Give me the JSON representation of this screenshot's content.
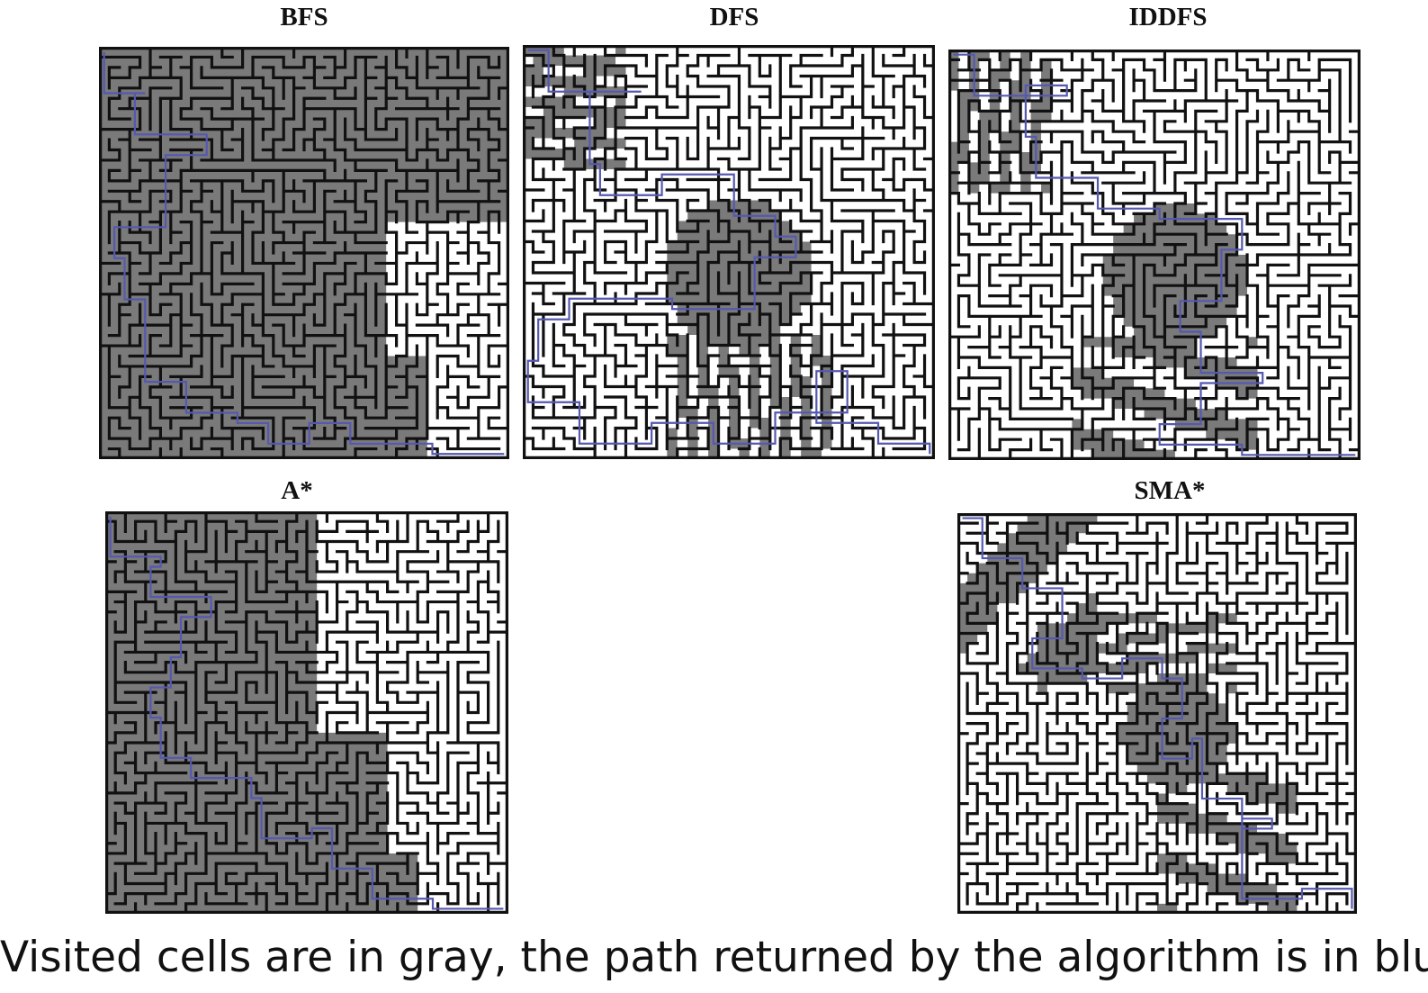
{
  "colors": {
    "wall": "#111111",
    "visited": "#7a7a7a",
    "unvisited": "#ffffff",
    "path": "#5558b0"
  },
  "panels": [
    {
      "id": "bfs",
      "title": "BFS",
      "visited": "gray",
      "path_color": "blue"
    },
    {
      "id": "dfs",
      "title": "DFS",
      "visited": "gray",
      "path_color": "blue"
    },
    {
      "id": "iddfs",
      "title": "IDDFS",
      "visited": "gray",
      "path_color": "blue"
    },
    {
      "id": "astar",
      "title": "A*",
      "visited": "gray",
      "path_color": "blue"
    },
    {
      "id": "smastar",
      "title": "SMA*",
      "visited": "gray",
      "path_color": "blue"
    }
  ],
  "caption": "Visited cells are in gray, the path returned by the algorithm is in blue"
}
